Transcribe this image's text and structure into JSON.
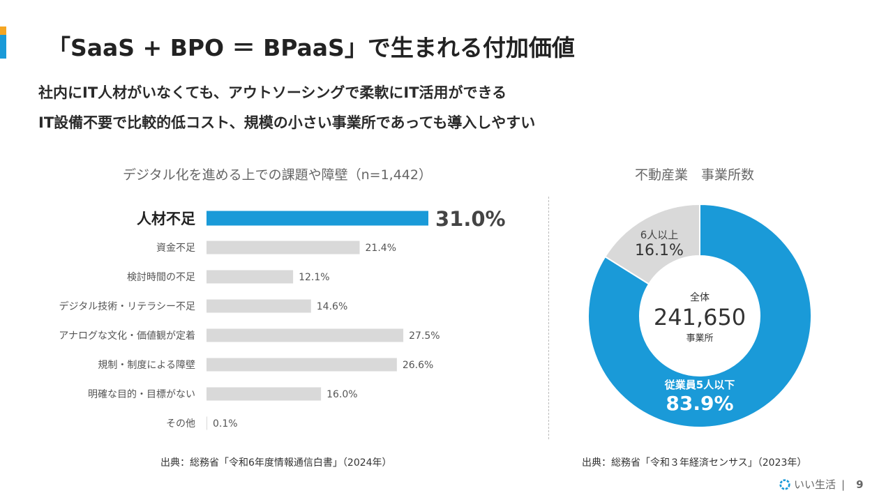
{
  "title": "「SaaS + BPO ＝ BPaaS」で生まれる付加価値",
  "subtitle_lines": [
    "社内にIT人材がいなくても、アウトソーシングで柔軟にIT活用ができる",
    "IT設備不要で比較的低コスト、規模の小さい事業所であっても導入しやすい"
  ],
  "colors": {
    "accent": "#1a9ad8",
    "bar_gray": "#d9d9d9",
    "highlight": "#f5a623"
  },
  "chart_data": [
    {
      "type": "bar",
      "orientation": "horizontal",
      "title": "デジタル化を進める上での課題や障壁（n=1,442）",
      "categories": [
        "人材不足",
        "資金不足",
        "検討時間の不足",
        "デジタル技術・リテラシー不足",
        "アナログな文化・価値観が定着",
        "規制・制度による障壁",
        "明確な目的・目標がない",
        "その他"
      ],
      "values": [
        31.0,
        21.4,
        12.1,
        14.6,
        27.5,
        26.6,
        16.0,
        0.1
      ],
      "value_labels": [
        "31.0%",
        "21.4%",
        "12.1%",
        "14.6%",
        "27.5%",
        "26.6%",
        "16.0%",
        "0.1%"
      ],
      "highlight_index": 0,
      "xlim": [
        0,
        31.0
      ],
      "source": "出典：総務省「令和6年度情報通信白書」（2024年）"
    },
    {
      "type": "pie",
      "title": "不動産業　事業所数",
      "center_title": "全体",
      "center_value": "241,650",
      "center_unit": "事業所",
      "slices": [
        {
          "label": "従業員5人以下",
          "value": 83.9,
          "value_label": "83.9%",
          "color": "#1a9ad8"
        },
        {
          "label": "6人以上",
          "value": 16.1,
          "value_label": "16.1%",
          "color": "#d9d9d9"
        }
      ],
      "source": "出典：総務省「令和３年経済センサス」（2023年）"
    }
  ],
  "footer": {
    "brand": "いい生活",
    "separator": "|",
    "page": "9"
  }
}
